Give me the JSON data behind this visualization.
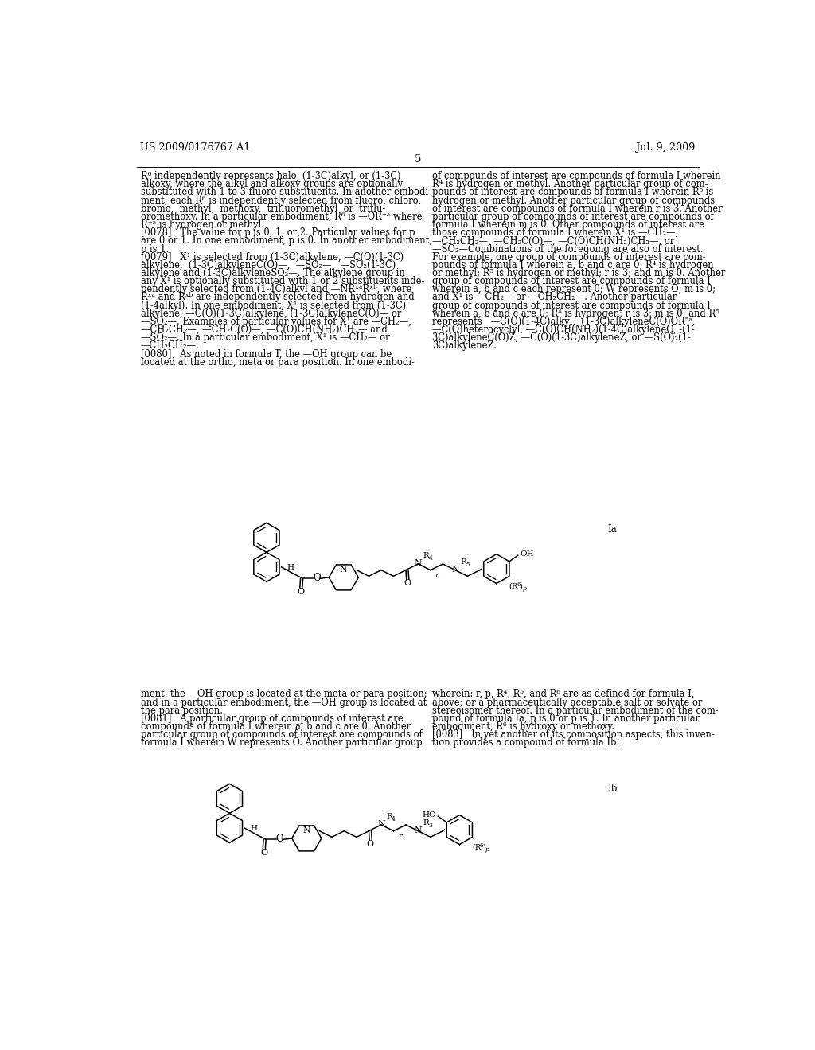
{
  "page_number": "5",
  "header_left": "US 2009/0176767 A1",
  "header_right": "Jul. 9, 2009",
  "background_color": "#ffffff",
  "text_color": "#000000",
  "font_size_body": 8.3,
  "font_size_header": 9.2,
  "left_column_text": [
    "R⁶ independently represents halo, (1-3C)alkyl, or (1-3C)",
    "alkoxy, where the alkyl and alkoxy groups are optionally",
    "substituted with 1 to 3 fluoro substituents. In another embodi-",
    "ment, each R⁶ is independently selected from fluoro, chloro,",
    "bromo,  methyl,  methoxy,  trifluoromethyl  or  triflu-",
    "oromethoxy. In a particular embodiment, R⁶ is —OR⁺ᵃ where",
    "R⁺ᵃ is hydrogen or methyl.",
    "[0078]   The value for p is 0, 1, or 2. Particular values for p",
    "are 0 or 1. In one embodiment, p is 0. In another embodiment,",
    "p is 1.",
    "[0079]   X¹ is selected from (1-3C)alkylene, —C(O)(1-3C)",
    "alkylene,  (1-3C)alkyleneC(O)—,  —SO₂—,  —SO₂(1-3C)",
    "alkylene and (1-3C)alkyleneSO₂—. The alkylene group in",
    "any X¹ is optionally substituted with 1 or 2 substituents inde-",
    "pendently selected from (1-4C)alkyl and —NRˣᵃRˣᵇ, where",
    "Rˣᵃ and Rˣᵇ are independently selected from hydrogen and",
    "(1-4alkyl). In one embodiment, X¹ is selected from (1-3C)",
    "alkylene, —C(O)(1-3C)alkylene, (1-3C)alkyleneC(O)— or",
    "—SO₂—. Examples of particular values for X¹ are —CH₂—,",
    "—CH₂CH₂—, —CH₂C(O)—, —C(O)CH(NH₂)CH₂— and",
    "—SO₂—. In a particular embodiment, X¹ is —CH₂— or",
    "—CH₂CH₂—.",
    "[0080]   As noted in formula T, the —OH group can be",
    "located at the ortho, meta or para position. In one embodi-"
  ],
  "right_column_text": [
    "of compounds of interest are compounds of formula I wherein",
    "R⁴ is hydrogen or methyl. Another particular group of com-",
    "pounds of interest are compounds of formula I wherein R⁵ is",
    "hydrogen or methyl. Another particular group of compounds",
    "of interest are compounds of formula I wherein r is 3. Another",
    "particular group of compounds of interest are compounds of",
    "formula I wherein m is 0. Other compounds of interest are",
    "those compounds of formula I wherein X¹ is —CH₂—,",
    "—CH₂CH₂—, —CH₂C(O)—, —C(O)CH(NH₂)CH₂—, or",
    "—SO₂—Combinations of the foregoing are also of interest.",
    "For example, one group of compounds of interest are com-",
    "pounds of formula I wherein a, b and c are 0; R⁴ is hydrogen",
    "or methyl; R⁵ is hydrogen or methyl; r is 3; and m is 0. Another",
    "group of compounds of interest are compounds of formula I",
    "wherein a, b and c each represent 0; W represents O; m is 0;",
    "and X¹ is —CH₂— or —CH₂CH₂—. Another particular",
    "group of compounds of interest are compounds of formula I",
    "wherein a, b and c are 0; R⁴ is hydrogen; r is 3; m is 0; and R⁵",
    "represents   —C(O)(1-4C)alkyl,  (1-3C)alkyleneC(O)OR⁵ᵃ,",
    "—C(O)heterocyclyl, —C(O)CH(NH₂)(1-4C)alkyleneQ, -(1-",
    "3C)alkyleneC(O)Z, —C(O)(1-3C)alkyleneZ, or —S(O)₂(1-",
    "3C)alkyleneZ."
  ],
  "bottom_left_text": [
    "ment, the —OH group is located at the meta or para position;",
    "and in a particular embodiment, the —OH group is located at",
    "the para position.",
    "[0081]   A particular group of compounds of interest are",
    "compounds of formula I wherein a, b and c are 0. Another",
    "particular group of compounds of interest are compounds of",
    "formula I wherein W represents O. Another particular group"
  ],
  "bottom_right_text": [
    "wherein: r, p, R⁴, R⁵, and R⁶ are as defined for formula I,",
    "above; or a pharmaceutically acceptable salt or solvate or",
    "stereoisomer thereof. In a particular embodiment of the com-",
    "pound of formula Ia, p is 0 or p is 1. In another particular",
    "embodiment, R⁶ is hydroxy or methoxy.",
    "[0083]   In yet another of its composition aspects, this inven-",
    "tion provides a compound of formula Ib:"
  ],
  "formula_ia_label": "Ia",
  "formula_ib_label": "Ib"
}
